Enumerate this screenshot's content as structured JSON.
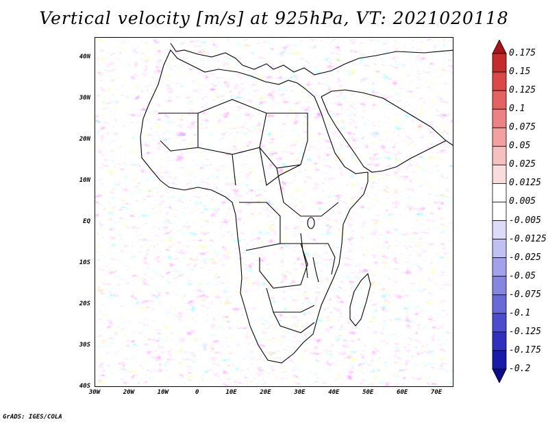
{
  "title": "Vertical velocity [m/s] at 925hPa, VT: 2021020118",
  "credit": "GrADS: IGES/COLA",
  "map": {
    "lon_range": [
      -30,
      75
    ],
    "lat_range": [
      -40,
      45
    ],
    "lat_labels": [
      "40N",
      "30N",
      "20N",
      "10N",
      "EQ",
      "10S",
      "20S",
      "30S",
      "40S"
    ],
    "lat_values": [
      40,
      30,
      20,
      10,
      0,
      -10,
      -20,
      -30,
      -40
    ],
    "lon_labels": [
      "30W",
      "20W",
      "10W",
      "0",
      "10E",
      "20E",
      "30E",
      "40E",
      "50E",
      "60E",
      "70E"
    ],
    "lon_values": [
      -30,
      -20,
      -10,
      0,
      10,
      20,
      30,
      40,
      50,
      60,
      70
    ]
  },
  "colorbar": {
    "labels": [
      "0.175",
      "0.15",
      "0.125",
      "0.1",
      "0.075",
      "0.05",
      "0.025",
      "0.0125",
      "0.005",
      "-0.005",
      "-0.0125",
      "-0.025",
      "-0.05",
      "-0.075",
      "-0.1",
      "-0.125",
      "-0.175",
      "-0.2"
    ],
    "colors": [
      "#a4141a",
      "#c42c2c",
      "#da4848",
      "#e56262",
      "#ec8282",
      "#f2a0a0",
      "#f7c0c0",
      "#fbdcdc",
      "#ffffff",
      "#ffffff",
      "#dcdcf8",
      "#c0c0f2",
      "#a2a2ea",
      "#8686e0",
      "#6a6ad6",
      "#4c4ccc",
      "#3030bc",
      "#1a1aa8",
      "#0c0c8c"
    ]
  }
}
